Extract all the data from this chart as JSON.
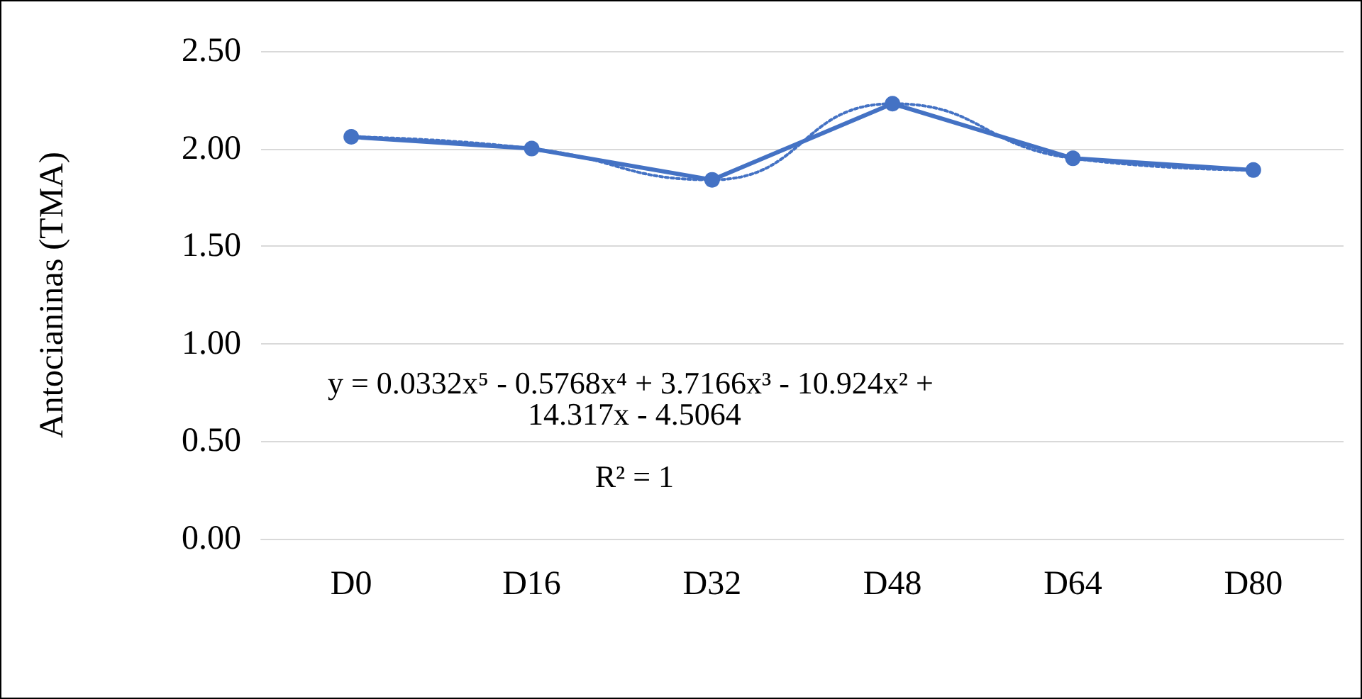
{
  "chart_data": {
    "type": "line",
    "ylabel": "Antocianinas (TMA)",
    "categories": [
      "D0",
      "D16",
      "D32",
      "D48",
      "D64",
      "D80"
    ],
    "marker": "circle",
    "series": [
      {
        "color": "#4472c4",
        "values": [
          2.06,
          2.0,
          1.84,
          2.23,
          1.95,
          1.89
        ],
        "line_style": "solid"
      },
      {
        "type": "line",
        "color": "#4472c4",
        "values": [
          2.06,
          2.0,
          1.84,
          2.23,
          1.95,
          1.89
        ],
        "marker": "none",
        "line_style": "dotted"
      }
    ],
    "annotations": [
      "y = 0.0332x⁵ - 0.5768x⁴ + 3.7166x³ - 10.924x² + 14.317x - 4.5064",
      "R² = 1"
    ],
    "ylim": [
      0,
      2.5
    ],
    "yticks": [
      {
        "value": 0,
        "label": "0.00"
      },
      {
        "value": 0.5,
        "label": "0.50"
      },
      {
        "value": 1,
        "label": "1.00"
      },
      {
        "value": 1.5,
        "label": "1.50"
      },
      {
        "value": 2,
        "label": "2.00"
      },
      {
        "value": 2.5,
        "label": "2.50"
      }
    ],
    "grid": "y"
  }
}
